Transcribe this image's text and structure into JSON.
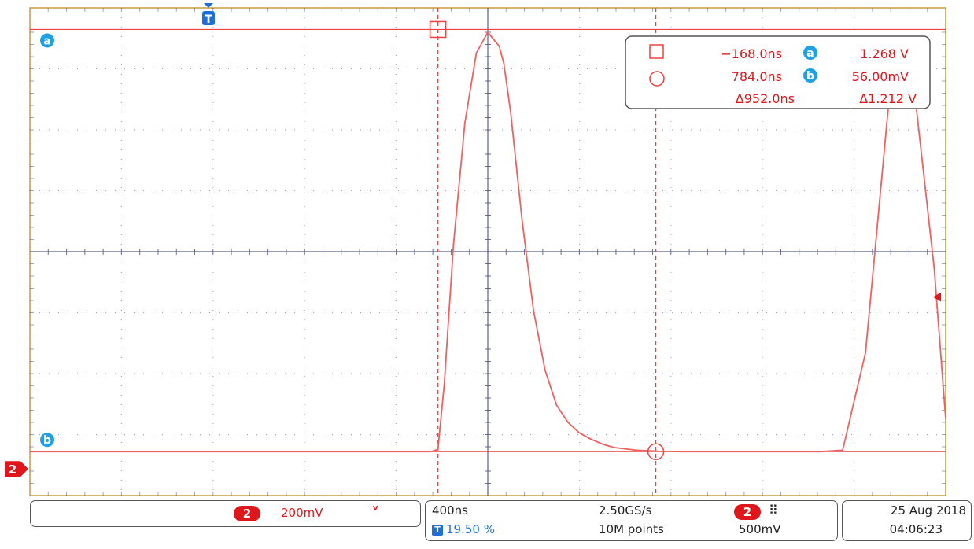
{
  "colors": {
    "trace": "#f06060",
    "cursor": "#ef4040",
    "grid": "#4a4e80",
    "badge_blue": "#1ea0e6",
    "badge_red": "#e0161b",
    "trigger_blue": "#1e6fd9",
    "border": "#cc9a3a"
  },
  "markers": {
    "trigger": "T",
    "channel": "2",
    "cursor_a": "a",
    "cursor_b": "b"
  },
  "readout": {
    "t1": "−168.0ns",
    "t2": "784.0ns",
    "dt": "Δ952.0ns",
    "va": "1.268 V",
    "vb": "56.00mV",
    "dv": "Δ1.212 V",
    "badge_a": "a",
    "badge_b": "b"
  },
  "status": {
    "channel": "2",
    "ch_scale": "200mV",
    "coupling_icon": "bandwidth-limit-icon",
    "timebase": "400ns",
    "trigger_pos": "19.50 %",
    "sample_rate": "2.50GS/s",
    "record_length": "10M points",
    "trig_channel": "2",
    "trig_slope_icon": "rising-edge-icon",
    "trig_level": "500mV",
    "date": "25 Aug 2018",
    "time": "04:06:23"
  },
  "chart_data": {
    "type": "line",
    "x_unit": "ns",
    "y_unit": "V",
    "x_div": 400,
    "y_div": 0.2,
    "xlim": [
      -1950,
      2050
    ],
    "ylim": [
      -0.07,
      1.33
    ],
    "grid": true,
    "cursors": {
      "t1": -168,
      "t2": 784,
      "va": 1.268,
      "vb": 0.056
    },
    "series": [
      {
        "x": [
          -1950,
          -1600,
          -1300,
          -1000,
          -800,
          -600,
          -400,
          -300,
          -250,
          -200,
          -168,
          -140,
          -100,
          -50,
          0,
          50,
          100,
          120,
          150,
          200,
          250,
          300,
          350,
          400,
          450,
          500,
          550,
          600,
          700,
          800,
          900,
          1000,
          1100,
          1200,
          1300,
          1400,
          1500,
          1600,
          1700,
          1800,
          1900,
          2000,
          2050
        ],
        "y": [
          0.056,
          0.056,
          0.056,
          0.056,
          0.056,
          0.056,
          0.056,
          0.056,
          0.056,
          0.056,
          0.062,
          0.25,
          0.65,
          1.0,
          1.2,
          1.26,
          1.22,
          1.17,
          1.03,
          0.72,
          0.46,
          0.29,
          0.19,
          0.14,
          0.11,
          0.092,
          0.078,
          0.068,
          0.06,
          0.057,
          0.056,
          0.056,
          0.056,
          0.056,
          0.056,
          0.056,
          0.056,
          0.06,
          0.34,
          1.05,
          1.17,
          0.58,
          0.15
        ]
      }
    ]
  }
}
